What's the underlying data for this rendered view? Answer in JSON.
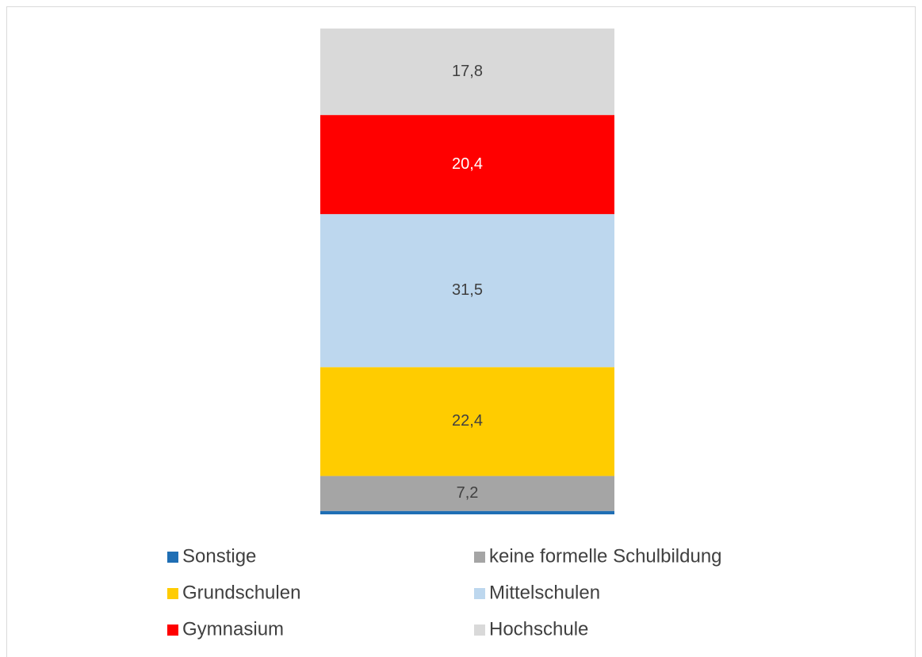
{
  "chart_data": {
    "type": "stacked_bar",
    "series": [
      {
        "name": "Sonstige",
        "color": "#1f6eb4",
        "values": [
          0.7
        ]
      },
      {
        "name": "keine formelle Schulbildung",
        "color": "#a5a5a5",
        "values": [
          7.2
        ],
        "value_labels": [
          "7,2"
        ]
      },
      {
        "name": "Grundschulen",
        "color": "#ffcc00",
        "values": [
          22.4
        ],
        "value_labels": [
          "22,4"
        ]
      },
      {
        "name": "Mittelschulen",
        "color": "#bdd7ee",
        "values": [
          31.5
        ],
        "value_labels": [
          "31,5"
        ]
      },
      {
        "name": "Gymnasium",
        "color": "#ff0000",
        "values": [
          20.4
        ],
        "value_labels": [
          "20,4"
        ]
      },
      {
        "name": "Hochschule",
        "color": "#d9d9d9",
        "values": [
          17.8
        ],
        "value_labels": [
          "17,8"
        ]
      }
    ],
    "legend": "bottom"
  }
}
